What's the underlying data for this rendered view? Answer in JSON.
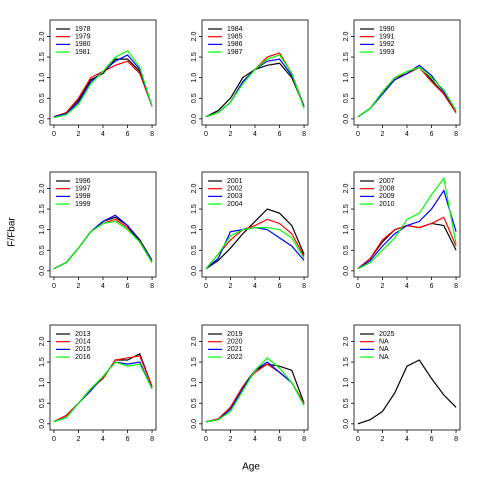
{
  "xlabel": "Age",
  "ylabel": "F/Fbar",
  "chart_data": [
    {
      "type": "line",
      "x": [
        0,
        1,
        2,
        3,
        4,
        5,
        6,
        7,
        8
      ],
      "xlim": [
        -0.32,
        8.32
      ],
      "xticks": [
        0,
        2,
        4,
        6,
        8
      ],
      "ylim": [
        -0.15,
        2.4
      ],
      "yticks": [
        {
          "value": 0,
          "label": "0.0"
        },
        {
          "value": 0.5,
          "label": "0.5"
        },
        {
          "value": 1,
          "label": "1.0"
        },
        {
          "value": 1.5,
          "label": "1.5"
        },
        {
          "value": 2,
          "label": "2.0"
        }
      ],
      "series": [
        {
          "name": "1978",
          "color": "#000000",
          "values": [
            0.05,
            0.15,
            0.45,
            0.95,
            1.1,
            1.45,
            1.45,
            1.15,
            0.3
          ]
        },
        {
          "name": "1979",
          "color": "#ff0000",
          "values": [
            0.05,
            0.15,
            0.5,
            1.0,
            1.15,
            1.3,
            1.4,
            1.1,
            0.3
          ]
        },
        {
          "name": "1980",
          "color": "#0000ff",
          "values": [
            0.05,
            0.12,
            0.4,
            0.9,
            1.15,
            1.4,
            1.55,
            1.2,
            0.3
          ]
        },
        {
          "name": "1981",
          "color": "#00ff00",
          "values": [
            0.03,
            0.1,
            0.35,
            0.85,
            1.15,
            1.5,
            1.65,
            1.25,
            0.3
          ]
        }
      ]
    },
    {
      "type": "line",
      "x": [
        0,
        1,
        2,
        3,
        4,
        5,
        6,
        7,
        8
      ],
      "xlim": [
        -0.32,
        8.32
      ],
      "xticks": [
        0,
        2,
        4,
        6,
        8
      ],
      "ylim": [
        -0.15,
        2.4
      ],
      "yticks": [
        {
          "value": 0,
          "label": "0.0"
        },
        {
          "value": 0.5,
          "label": "0.5"
        },
        {
          "value": 1,
          "label": "1.0"
        },
        {
          "value": 1.5,
          "label": "1.5"
        },
        {
          "value": 2,
          "label": "2.0"
        }
      ],
      "series": [
        {
          "name": "1984",
          "color": "#000000",
          "values": [
            0.05,
            0.2,
            0.5,
            1.0,
            1.2,
            1.3,
            1.35,
            1.0,
            0.3
          ]
        },
        {
          "name": "1985",
          "color": "#ff0000",
          "values": [
            0.05,
            0.15,
            0.4,
            0.9,
            1.2,
            1.5,
            1.6,
            1.1,
            0.3
          ]
        },
        {
          "name": "1986",
          "color": "#0000ff",
          "values": [
            0.05,
            0.15,
            0.4,
            0.9,
            1.2,
            1.4,
            1.45,
            1.05,
            0.3
          ]
        },
        {
          "name": "1987",
          "color": "#00ff00",
          "values": [
            0.05,
            0.15,
            0.4,
            0.85,
            1.2,
            1.45,
            1.55,
            1.1,
            0.25
          ]
        }
      ]
    },
    {
      "type": "line",
      "x": [
        0,
        1,
        2,
        3,
        4,
        5,
        6,
        7,
        8
      ],
      "xlim": [
        -0.32,
        8.32
      ],
      "xticks": [
        0,
        2,
        4,
        6,
        8
      ],
      "ylim": [
        -0.15,
        2.4
      ],
      "yticks": [
        {
          "value": 0,
          "label": "0.0"
        },
        {
          "value": 0.5,
          "label": "0.5"
        },
        {
          "value": 1,
          "label": "1.0"
        },
        {
          "value": 1.5,
          "label": "1.5"
        },
        {
          "value": 2,
          "label": "2.0"
        }
      ],
      "series": [
        {
          "name": "1990",
          "color": "#000000",
          "values": [
            0.05,
            0.25,
            0.65,
            0.95,
            1.1,
            1.25,
            0.95,
            0.6,
            0.15
          ]
        },
        {
          "name": "1991",
          "color": "#ff0000",
          "values": [
            0.05,
            0.25,
            0.65,
            1.0,
            1.1,
            1.25,
            0.9,
            0.6,
            0.15
          ]
        },
        {
          "name": "1992",
          "color": "#0000ff",
          "values": [
            0.05,
            0.25,
            0.6,
            0.95,
            1.1,
            1.3,
            1.05,
            0.65,
            0.2
          ]
        },
        {
          "name": "1993",
          "color": "#00ff00",
          "values": [
            0.05,
            0.25,
            0.65,
            1.0,
            1.15,
            1.25,
            1.0,
            0.7,
            0.2
          ]
        }
      ]
    },
    {
      "type": "line",
      "x": [
        0,
        1,
        2,
        3,
        4,
        5,
        6,
        7,
        8
      ],
      "xlim": [
        -0.32,
        8.32
      ],
      "xticks": [
        0,
        2,
        4,
        6,
        8
      ],
      "ylim": [
        -0.15,
        2.4
      ],
      "yticks": [
        {
          "value": 0,
          "label": "0.0"
        },
        {
          "value": 0.5,
          "label": "0.5"
        },
        {
          "value": 1,
          "label": "1.0"
        },
        {
          "value": 1.5,
          "label": "1.5"
        },
        {
          "value": 2,
          "label": "2.0"
        }
      ],
      "series": [
        {
          "name": "1996",
          "color": "#000000",
          "values": [
            0.05,
            0.2,
            0.55,
            0.95,
            1.2,
            1.3,
            1.1,
            0.75,
            0.25
          ]
        },
        {
          "name": "1997",
          "color": "#ff0000",
          "values": [
            0.05,
            0.2,
            0.55,
            0.95,
            1.15,
            1.25,
            1.05,
            0.7,
            0.2
          ]
        },
        {
          "name": "1998",
          "color": "#0000ff",
          "values": [
            0.05,
            0.2,
            0.55,
            0.95,
            1.2,
            1.35,
            1.1,
            0.7,
            0.25
          ]
        },
        {
          "name": "1999",
          "color": "#00ff00",
          "values": [
            0.05,
            0.2,
            0.55,
            0.95,
            1.15,
            1.2,
            1.0,
            0.7,
            0.2
          ]
        }
      ]
    },
    {
      "type": "line",
      "x": [
        0,
        1,
        2,
        3,
        4,
        5,
        6,
        7,
        8
      ],
      "xlim": [
        -0.32,
        8.32
      ],
      "xticks": [
        0,
        2,
        4,
        6,
        8
      ],
      "ylim": [
        -0.15,
        2.4
      ],
      "yticks": [
        {
          "value": 0,
          "label": "0.0"
        },
        {
          "value": 0.5,
          "label": "0.5"
        },
        {
          "value": 1,
          "label": "1.0"
        },
        {
          "value": 1.5,
          "label": "1.5"
        },
        {
          "value": 2,
          "label": "2.0"
        }
      ],
      "series": [
        {
          "name": "2001",
          "color": "#000000",
          "values": [
            0.05,
            0.25,
            0.55,
            0.9,
            1.2,
            1.5,
            1.4,
            1.1,
            0.4
          ]
        },
        {
          "name": "2002",
          "color": "#ff0000",
          "values": [
            0.05,
            0.4,
            0.75,
            1.0,
            1.1,
            1.25,
            1.15,
            0.9,
            0.35
          ]
        },
        {
          "name": "2003",
          "color": "#0000ff",
          "values": [
            0.05,
            0.3,
            0.95,
            1.0,
            1.05,
            1.0,
            0.8,
            0.6,
            0.25
          ]
        },
        {
          "name": "2004",
          "color": "#00ff00",
          "values": [
            0.05,
            0.4,
            0.85,
            1.0,
            1.05,
            1.05,
            1.0,
            0.8,
            0.3
          ]
        }
      ]
    },
    {
      "type": "line",
      "x": [
        0,
        1,
        2,
        3,
        4,
        5,
        6,
        7,
        8
      ],
      "xlim": [
        -0.32,
        8.32
      ],
      "xticks": [
        0,
        2,
        4,
        6,
        8
      ],
      "ylim": [
        -0.15,
        2.4
      ],
      "yticks": [
        {
          "value": 0,
          "label": "0.0"
        },
        {
          "value": 0.5,
          "label": "0.5"
        },
        {
          "value": 1,
          "label": "1.0"
        },
        {
          "value": 1.5,
          "label": "1.5"
        },
        {
          "value": 2,
          "label": "2.0"
        }
      ],
      "series": [
        {
          "name": "2007",
          "color": "#000000",
          "values": [
            0.05,
            0.3,
            0.7,
            1.0,
            1.1,
            1.05,
            1.15,
            1.1,
            0.5
          ]
        },
        {
          "name": "2008",
          "color": "#ff0000",
          "values": [
            0.05,
            0.3,
            0.75,
            1.0,
            1.1,
            1.05,
            1.15,
            1.3,
            0.6
          ]
        },
        {
          "name": "2009",
          "color": "#0000ff",
          "values": [
            0.05,
            0.25,
            0.6,
            0.9,
            1.1,
            1.2,
            1.5,
            1.95,
            0.95
          ]
        },
        {
          "name": "2010",
          "color": "#00ff00",
          "values": [
            0.05,
            0.2,
            0.5,
            0.8,
            1.25,
            1.4,
            1.85,
            2.25,
            0.65
          ]
        }
      ]
    },
    {
      "type": "line",
      "x": [
        0,
        1,
        2,
        3,
        4,
        5,
        6,
        7,
        8
      ],
      "xlim": [
        -0.32,
        8.32
      ],
      "xticks": [
        0,
        2,
        4,
        6,
        8
      ],
      "ylim": [
        -0.15,
        2.4
      ],
      "yticks": [
        {
          "value": 0,
          "label": "0.0"
        },
        {
          "value": 0.5,
          "label": "0.5"
        },
        {
          "value": 1,
          "label": "1.0"
        },
        {
          "value": 1.5,
          "label": "1.5"
        },
        {
          "value": 2,
          "label": "2.0"
        }
      ],
      "series": [
        {
          "name": "2013",
          "color": "#000000",
          "values": [
            0.05,
            0.2,
            0.5,
            0.85,
            1.1,
            1.55,
            1.55,
            1.7,
            0.9
          ]
        },
        {
          "name": "2014",
          "color": "#ff0000",
          "values": [
            0.05,
            0.2,
            0.5,
            0.85,
            1.1,
            1.55,
            1.6,
            1.65,
            0.9
          ]
        },
        {
          "name": "2015",
          "color": "#0000ff",
          "values": [
            0.05,
            0.15,
            0.5,
            0.8,
            1.15,
            1.5,
            1.45,
            1.5,
            0.85
          ]
        },
        {
          "name": "2016",
          "color": "#00ff00",
          "values": [
            0.05,
            0.15,
            0.5,
            0.85,
            1.15,
            1.5,
            1.4,
            1.45,
            0.85
          ]
        }
      ]
    },
    {
      "type": "line",
      "x": [
        0,
        1,
        2,
        3,
        4,
        5,
        6,
        7,
        8
      ],
      "xlim": [
        -0.32,
        8.32
      ],
      "xticks": [
        0,
        2,
        4,
        6,
        8
      ],
      "ylim": [
        -0.15,
        2.4
      ],
      "yticks": [
        {
          "value": 0,
          "label": "0.0"
        },
        {
          "value": 0.5,
          "label": "0.5"
        },
        {
          "value": 1,
          "label": "1.0"
        },
        {
          "value": 1.5,
          "label": "1.5"
        },
        {
          "value": 2,
          "label": "2.0"
        }
      ],
      "series": [
        {
          "name": "2019",
          "color": "#000000",
          "values": [
            0.05,
            0.1,
            0.4,
            0.9,
            1.3,
            1.45,
            1.4,
            1.3,
            0.5
          ]
        },
        {
          "name": "2020",
          "color": "#ff0000",
          "values": [
            0.05,
            0.12,
            0.4,
            0.9,
            1.25,
            1.45,
            1.25,
            1.0,
            0.5
          ]
        },
        {
          "name": "2021",
          "color": "#0000ff",
          "values": [
            0.05,
            0.1,
            0.35,
            0.85,
            1.3,
            1.5,
            1.25,
            1.0,
            0.45
          ]
        },
        {
          "name": "2022",
          "color": "#00ff00",
          "values": [
            0.05,
            0.1,
            0.3,
            0.8,
            1.3,
            1.6,
            1.35,
            1.0,
            0.45
          ]
        }
      ]
    },
    {
      "type": "line",
      "x": [
        0,
        1,
        2,
        3,
        4,
        5,
        6,
        7,
        8
      ],
      "xlim": [
        -0.32,
        8.32
      ],
      "xticks": [
        0,
        2,
        4,
        6,
        8
      ],
      "ylim": [
        -0.15,
        2.4
      ],
      "yticks": [
        {
          "value": 0,
          "label": "0.0"
        },
        {
          "value": 0.5,
          "label": "0.5"
        },
        {
          "value": 1,
          "label": "1.0"
        },
        {
          "value": 1.5,
          "label": "1.5"
        },
        {
          "value": 2,
          "label": "2.0"
        }
      ],
      "series": [
        {
          "name": "2025",
          "color": "#000000",
          "values": [
            0.0,
            0.1,
            0.3,
            0.75,
            1.4,
            1.55,
            1.1,
            0.7,
            0.4
          ]
        },
        {
          "name": "NA",
          "color": "#ff0000",
          "values": [
            null,
            null,
            null,
            null,
            null,
            null,
            null,
            null,
            null
          ]
        },
        {
          "name": "NA",
          "color": "#0000ff",
          "values": [
            null,
            null,
            null,
            null,
            null,
            null,
            null,
            null,
            null
          ]
        },
        {
          "name": "NA",
          "color": "#00ff00",
          "values": [
            null,
            null,
            null,
            null,
            null,
            null,
            null,
            null,
            null
          ]
        }
      ]
    }
  ]
}
